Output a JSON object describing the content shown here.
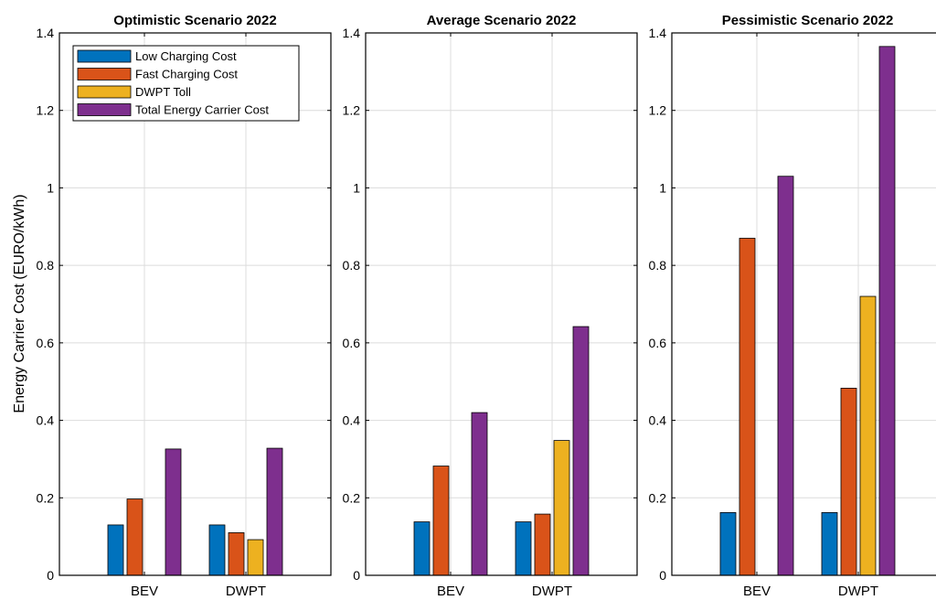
{
  "ylabel": "Energy Carrier Cost (EURO/kWh)",
  "legend_labels": [
    "Low Charging Cost",
    "Fast Charging Cost",
    "DWPT Toll",
    "Total Energy Carrier Cost"
  ],
  "colors": [
    "#0072BD",
    "#D95319",
    "#EDB120",
    "#7E2F8E"
  ],
  "chart_data": [
    {
      "type": "bar",
      "title": "Optimistic Scenario 2022",
      "categories": [
        "BEV",
        "DWPT"
      ],
      "ylim": [
        0,
        1.4
      ],
      "yticks": [
        "0",
        "0.2",
        "0.4",
        "0.6",
        "0.8",
        "1",
        "1.2",
        "1.4"
      ],
      "grid": true,
      "legend": "top-left",
      "series": [
        {
          "name": "Low Charging Cost",
          "values": [
            0.13,
            0.13
          ]
        },
        {
          "name": "Fast Charging Cost",
          "values": [
            0.197,
            0.11
          ]
        },
        {
          "name": "DWPT Toll",
          "values": [
            0,
            0.092
          ]
        },
        {
          "name": "Total Energy Carrier Cost",
          "values": [
            0.326,
            0.328
          ]
        }
      ]
    },
    {
      "type": "bar",
      "title": "Average Scenario 2022",
      "categories": [
        "BEV",
        "DWPT"
      ],
      "ylim": [
        0,
        1.4
      ],
      "yticks": [
        "0",
        "0.2",
        "0.4",
        "0.6",
        "0.8",
        "1",
        "1.2",
        "1.4"
      ],
      "grid": true,
      "series": [
        {
          "name": "Low Charging Cost",
          "values": [
            0.138,
            0.138
          ]
        },
        {
          "name": "Fast Charging Cost",
          "values": [
            0.282,
            0.158
          ]
        },
        {
          "name": "DWPT Toll",
          "values": [
            0,
            0.348
          ]
        },
        {
          "name": "Total Energy Carrier Cost",
          "values": [
            0.42,
            0.642
          ]
        }
      ]
    },
    {
      "type": "bar",
      "title": "Pessimistic Scenario 2022",
      "categories": [
        "BEV",
        "DWPT"
      ],
      "ylim": [
        0,
        1.4
      ],
      "yticks": [
        "0",
        "0.2",
        "0.4",
        "0.6",
        "0.8",
        "1",
        "1.2",
        "1.4"
      ],
      "grid": true,
      "series": [
        {
          "name": "Low Charging Cost",
          "values": [
            0.162,
            0.162
          ]
        },
        {
          "name": "Fast Charging Cost",
          "values": [
            0.87,
            0.483
          ]
        },
        {
          "name": "DWPT Toll",
          "values": [
            0,
            0.72
          ]
        },
        {
          "name": "Total Energy Carrier Cost",
          "values": [
            1.03,
            1.365
          ]
        }
      ]
    }
  ]
}
